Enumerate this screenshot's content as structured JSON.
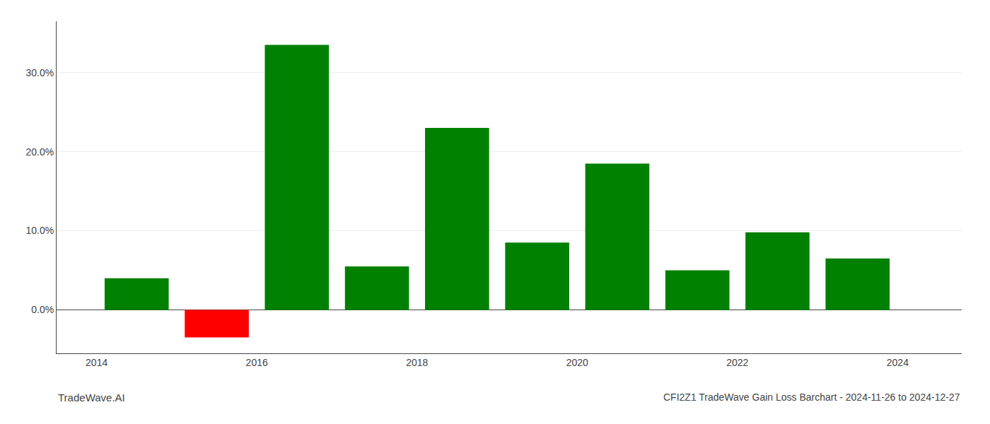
{
  "chart_data": {
    "type": "bar",
    "title": "CFI2Z1 TradeWave Gain Loss Barchart - 2024-11-26 to 2024-12-27",
    "annotations": [
      "TradeWave.AI"
    ],
    "x": [
      2014.5,
      2015.5,
      2016.5,
      2017.5,
      2018.5,
      2019.5,
      2020.5,
      2021.5,
      2022.5,
      2023.5
    ],
    "values": [
      0.04,
      -0.035,
      0.335,
      0.055,
      0.23,
      0.085,
      0.185,
      0.05,
      0.098,
      0.065
    ],
    "colors": [
      "#008000",
      "#ff0000",
      "#008000",
      "#008000",
      "#008000",
      "#008000",
      "#008000",
      "#008000",
      "#008000",
      "#008000"
    ],
    "xlim": [
      2013.5,
      2024.8
    ],
    "xticks": [
      2014,
      2016,
      2018,
      2020,
      2022,
      2024
    ],
    "ylim": [
      -0.055,
      0.365
    ],
    "yticks": [
      {
        "value": 0.0,
        "label": "0.0%"
      },
      {
        "value": 0.1,
        "label": "10.0%"
      },
      {
        "value": 0.2,
        "label": "20.0%"
      },
      {
        "value": 0.3,
        "label": "30.0%"
      }
    ],
    "grid": true
  }
}
